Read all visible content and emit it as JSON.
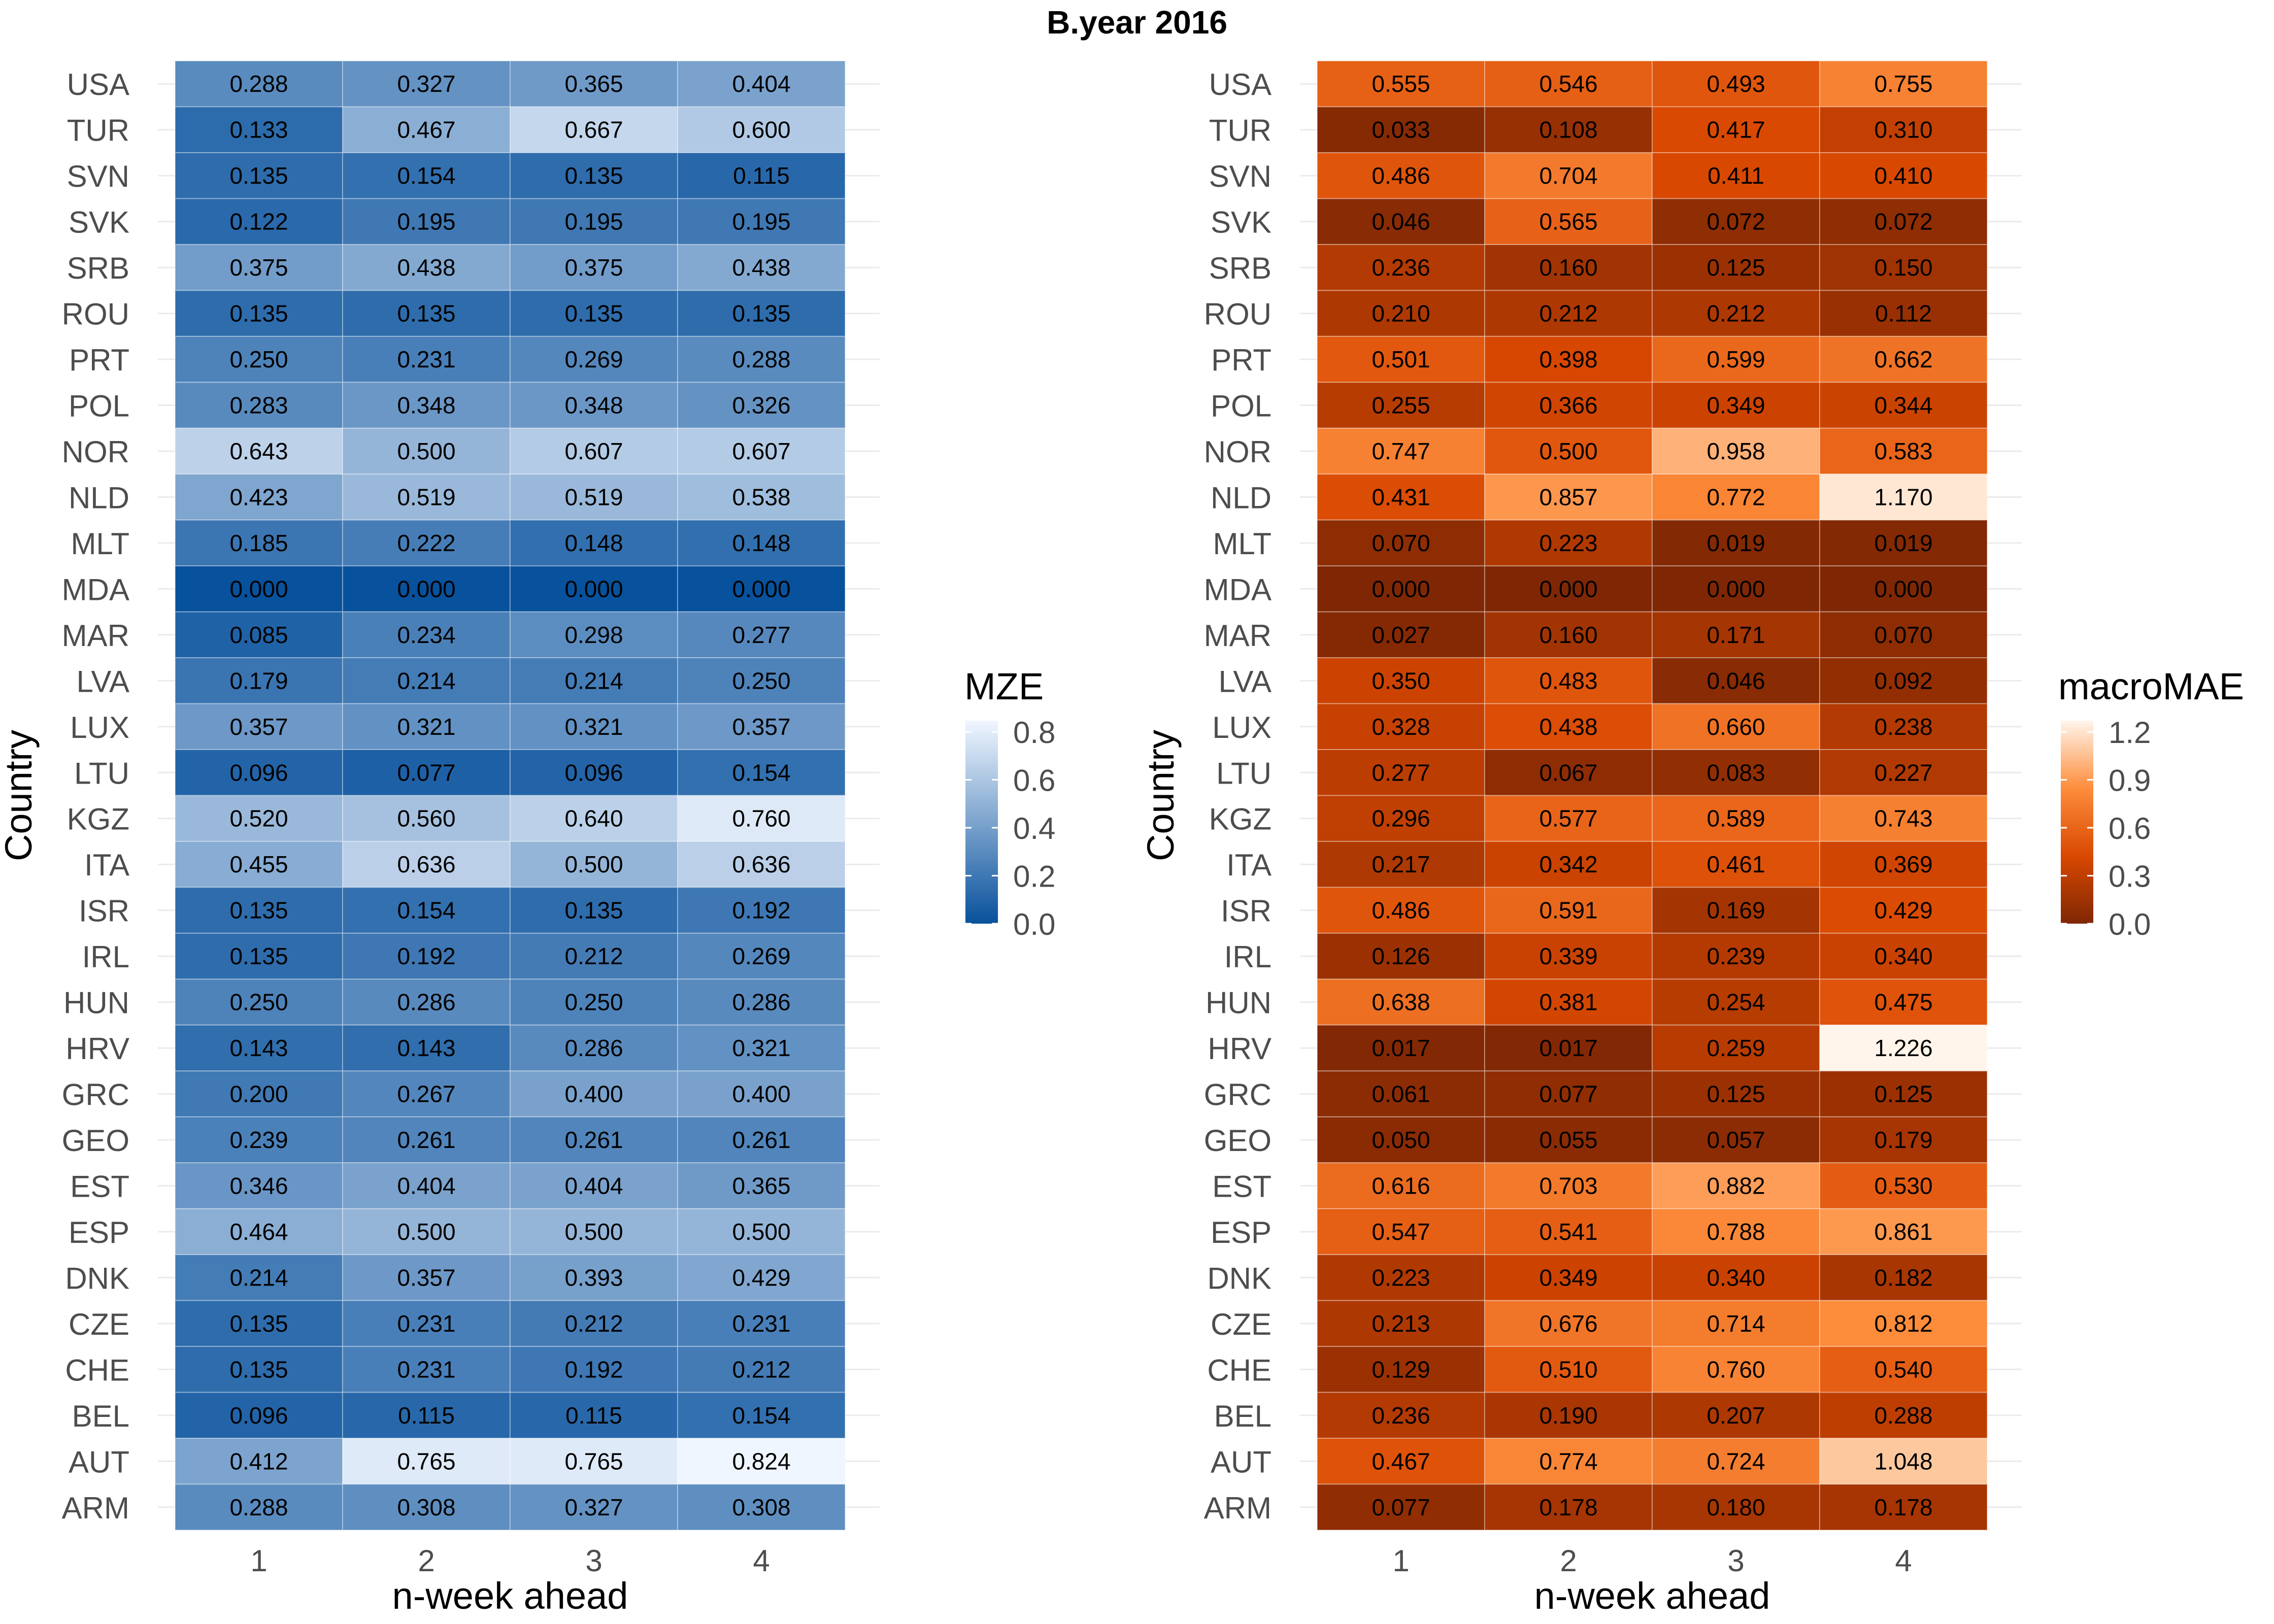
{
  "title": "B.year 2016",
  "countries": [
    "USA",
    "TUR",
    "SVN",
    "SVK",
    "SRB",
    "ROU",
    "PRT",
    "POL",
    "NOR",
    "NLD",
    "MLT",
    "MDA",
    "MAR",
    "LVA",
    "LUX",
    "LTU",
    "KGZ",
    "ITA",
    "ISR",
    "IRL",
    "HUN",
    "HRV",
    "GRC",
    "GEO",
    "EST",
    "ESP",
    "DNK",
    "CZE",
    "CHE",
    "BEL",
    "AUT",
    "ARM"
  ],
  "chart_data": [
    {
      "type": "heatmap",
      "xlabel": "n-week ahead",
      "ylabel": "Country",
      "x": [
        "1",
        "2",
        "3",
        "4"
      ],
      "legend_title": "MZE",
      "legend_ticks": [
        "0.0",
        "0.2",
        "0.4",
        "0.6",
        "0.8"
      ],
      "scale_domain": [
        0,
        0.824
      ],
      "colors": [
        "#08519c",
        "#f0f6ff"
      ],
      "values": [
        [
          0.288,
          0.327,
          0.365,
          0.404
        ],
        [
          0.133,
          0.467,
          0.667,
          0.6
        ],
        [
          0.135,
          0.154,
          0.135,
          0.115
        ],
        [
          0.122,
          0.195,
          0.195,
          0.195
        ],
        [
          0.375,
          0.438,
          0.375,
          0.438
        ],
        [
          0.135,
          0.135,
          0.135,
          0.135
        ],
        [
          0.25,
          0.231,
          0.269,
          0.288
        ],
        [
          0.283,
          0.348,
          0.348,
          0.326
        ],
        [
          0.643,
          0.5,
          0.607,
          0.607
        ],
        [
          0.423,
          0.519,
          0.519,
          0.538
        ],
        [
          0.185,
          0.222,
          0.148,
          0.148
        ],
        [
          0.0,
          0.0,
          0.0,
          0.0
        ],
        [
          0.085,
          0.234,
          0.298,
          0.277
        ],
        [
          0.179,
          0.214,
          0.214,
          0.25
        ],
        [
          0.357,
          0.321,
          0.321,
          0.357
        ],
        [
          0.096,
          0.077,
          0.096,
          0.154
        ],
        [
          0.52,
          0.56,
          0.64,
          0.76
        ],
        [
          0.455,
          0.636,
          0.5,
          0.636
        ],
        [
          0.135,
          0.154,
          0.135,
          0.192
        ],
        [
          0.135,
          0.192,
          0.212,
          0.269
        ],
        [
          0.25,
          0.286,
          0.25,
          0.286
        ],
        [
          0.143,
          0.143,
          0.286,
          0.321
        ],
        [
          0.2,
          0.267,
          0.4,
          0.4
        ],
        [
          0.239,
          0.261,
          0.261,
          0.261
        ],
        [
          0.346,
          0.404,
          0.404,
          0.365
        ],
        [
          0.464,
          0.5,
          0.5,
          0.5
        ],
        [
          0.214,
          0.357,
          0.393,
          0.429
        ],
        [
          0.135,
          0.231,
          0.212,
          0.231
        ],
        [
          0.135,
          0.231,
          0.192,
          0.212
        ],
        [
          0.096,
          0.115,
          0.115,
          0.154
        ],
        [
          0.412,
          0.765,
          0.765,
          0.824
        ],
        [
          0.288,
          0.308,
          0.327,
          0.308
        ]
      ]
    },
    {
      "type": "heatmap",
      "xlabel": "n-week ahead",
      "ylabel": "Country",
      "x": [
        "1",
        "2",
        "3",
        "4"
      ],
      "legend_title": "macroMAE",
      "legend_ticks": [
        "0.0",
        "0.3",
        "0.6",
        "0.9",
        "1.2"
      ],
      "scale_domain": [
        0,
        1.226
      ],
      "colors": [
        "#7f2704",
        "#d94801",
        "#fd8d3c",
        "#fff5eb"
      ],
      "values": [
        [
          0.555,
          0.546,
          0.493,
          0.755
        ],
        [
          0.033,
          0.108,
          0.417,
          0.31
        ],
        [
          0.486,
          0.704,
          0.411,
          0.41
        ],
        [
          0.046,
          0.565,
          0.072,
          0.072
        ],
        [
          0.236,
          0.16,
          0.125,
          0.15
        ],
        [
          0.21,
          0.212,
          0.212,
          0.112
        ],
        [
          0.501,
          0.398,
          0.599,
          0.662
        ],
        [
          0.255,
          0.366,
          0.349,
          0.344
        ],
        [
          0.747,
          0.5,
          0.958,
          0.583
        ],
        [
          0.431,
          0.857,
          0.772,
          1.17
        ],
        [
          0.07,
          0.223,
          0.019,
          0.019
        ],
        [
          0.0,
          0.0,
          0.0,
          0.0
        ],
        [
          0.027,
          0.16,
          0.171,
          0.07
        ],
        [
          0.35,
          0.483,
          0.046,
          0.092
        ],
        [
          0.328,
          0.438,
          0.66,
          0.238
        ],
        [
          0.277,
          0.067,
          0.083,
          0.227
        ],
        [
          0.296,
          0.577,
          0.589,
          0.743
        ],
        [
          0.217,
          0.342,
          0.461,
          0.369
        ],
        [
          0.486,
          0.591,
          0.169,
          0.429
        ],
        [
          0.126,
          0.339,
          0.239,
          0.34
        ],
        [
          0.638,
          0.381,
          0.254,
          0.475
        ],
        [
          0.017,
          0.017,
          0.259,
          1.226
        ],
        [
          0.061,
          0.077,
          0.125,
          0.125
        ],
        [
          0.05,
          0.055,
          0.057,
          0.179
        ],
        [
          0.616,
          0.703,
          0.882,
          0.53
        ],
        [
          0.547,
          0.541,
          0.788,
          0.861
        ],
        [
          0.223,
          0.349,
          0.34,
          0.182
        ],
        [
          0.213,
          0.676,
          0.714,
          0.812
        ],
        [
          0.129,
          0.51,
          0.76,
          0.54
        ],
        [
          0.236,
          0.19,
          0.207,
          0.288
        ],
        [
          0.467,
          0.774,
          0.724,
          1.048
        ],
        [
          0.077,
          0.178,
          0.18,
          0.178
        ]
      ]
    }
  ]
}
